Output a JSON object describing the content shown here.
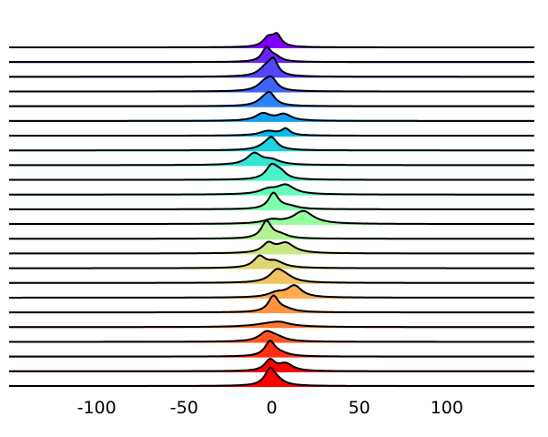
{
  "chart_data": {
    "type": "area",
    "title": "",
    "xlabel": "",
    "ylabel": "",
    "xlim": [
      -150,
      150
    ],
    "x_ticks": [
      -100,
      -50,
      0,
      50,
      100
    ],
    "x_tick_labels": [
      "-100",
      "-50",
      "0",
      "50",
      "100"
    ],
    "grid": false,
    "legend": "none",
    "series": [
      {
        "color": "#8000ff",
        "peaks": [
          {
            "center": -2,
            "height": 1.0,
            "width": 3.5
          },
          {
            "center": 3,
            "height": 1.25,
            "width": 3
          }
        ]
      },
      {
        "color": "#6a23fe",
        "peaks": [
          {
            "center": -3,
            "height": 1.5,
            "width": 3
          },
          {
            "center": 2,
            "height": 0.5,
            "width": 4
          }
        ]
      },
      {
        "color": "#5444fd",
        "peaks": [
          {
            "center": -3,
            "height": 1.0,
            "width": 5
          },
          {
            "center": 1,
            "height": 1.5,
            "width": 3
          }
        ]
      },
      {
        "color": "#3e63fa",
        "peaks": [
          {
            "center": -4,
            "height": 0.9,
            "width": 5
          },
          {
            "center": 0,
            "height": 1.1,
            "width": 3.5
          }
        ]
      },
      {
        "color": "#2884f6",
        "peaks": [
          {
            "center": -4,
            "height": 0.7,
            "width": 5
          },
          {
            "center": -1,
            "height": 1.05,
            "width": 3.5
          }
        ]
      },
      {
        "color": "#12a1f0",
        "peaks": [
          {
            "center": -5,
            "height": 0.8,
            "width": 5
          },
          {
            "center": 7,
            "height": 0.7,
            "width": 5
          }
        ]
      },
      {
        "color": "#03bce9",
        "peaks": [
          {
            "center": -2,
            "height": 0.5,
            "width": 6
          },
          {
            "center": 8,
            "height": 0.7,
            "width": 3
          }
        ]
      },
      {
        "color": "#1ad4e1",
        "peaks": [
          {
            "center": -3,
            "height": 0.5,
            "width": 6
          },
          {
            "center": 0,
            "height": 1.1,
            "width": 3.5
          }
        ]
      },
      {
        "color": "#33e6d5",
        "peaks": [
          {
            "center": -10,
            "height": 1.25,
            "width": 5
          },
          {
            "center": 0,
            "height": 0.5,
            "width": 6
          }
        ]
      },
      {
        "color": "#4cf2c9",
        "peaks": [
          {
            "center": 0,
            "height": 1.5,
            "width": 4
          },
          {
            "center": 5,
            "height": 0.7,
            "width": 4
          }
        ]
      },
      {
        "color": "#65fbbc",
        "peaks": [
          {
            "center": -2,
            "height": 0.5,
            "width": 6
          },
          {
            "center": 8,
            "height": 1.0,
            "width": 6
          }
        ]
      },
      {
        "color": "#7efeae",
        "peaks": [
          {
            "center": 1,
            "height": 1.75,
            "width": 3.5
          },
          {
            "center": 10,
            "height": 0.3,
            "width": 6
          }
        ]
      },
      {
        "color": "#97fea0",
        "peaks": [
          {
            "center": 18,
            "height": 1.4,
            "width": 7
          },
          {
            "center": 0,
            "height": 0.4,
            "width": 6
          }
        ]
      },
      {
        "color": "#b1f492",
        "peaks": [
          {
            "center": -3,
            "height": 1.9,
            "width": 3.5
          },
          {
            "center": 5,
            "height": 0.4,
            "width": 5
          }
        ]
      },
      {
        "color": "#c8e882",
        "peaks": [
          {
            "center": -2,
            "height": 1.0,
            "width": 4
          },
          {
            "center": 8,
            "height": 1.1,
            "width": 6
          }
        ]
      },
      {
        "color": "#ddd672",
        "peaks": [
          {
            "center": -7,
            "height": 1.2,
            "width": 4
          },
          {
            "center": 2,
            "height": 0.7,
            "width": 6
          }
        ]
      },
      {
        "color": "#f1c461",
        "peaks": [
          {
            "center": 3,
            "height": 1.25,
            "width": 5
          },
          {
            "center": 8,
            "height": 0.5,
            "width": 6
          }
        ]
      },
      {
        "color": "#fdac51",
        "peaks": [
          {
            "center": 13,
            "height": 1.25,
            "width": 5
          },
          {
            "center": 3,
            "height": 0.5,
            "width": 6
          }
        ]
      },
      {
        "color": "#ff9241",
        "peaks": [
          {
            "center": 1,
            "height": 1.75,
            "width": 3.5
          },
          {
            "center": 8,
            "height": 0.3,
            "width": 6
          }
        ]
      },
      {
        "color": "#ff7531",
        "peaks": [
          {
            "center": 0,
            "height": 0.4,
            "width": 12
          },
          {
            "center": 5,
            "height": 0.25,
            "width": 6
          }
        ]
      },
      {
        "color": "#ff5420",
        "peaks": [
          {
            "center": -3,
            "height": 1.0,
            "width": 5
          },
          {
            "center": 3,
            "height": 0.4,
            "width": 6
          }
        ]
      },
      {
        "color": "#ff2f10",
        "peaks": [
          {
            "center": -1,
            "height": 1.6,
            "width": 3.5
          },
          {
            "center": 5,
            "height": 0.3,
            "width": 6
          }
        ]
      },
      {
        "color": "#ff0000",
        "peaks": [
          {
            "center": -1,
            "height": 1.2,
            "width": 3.5
          },
          {
            "center": 8,
            "height": 0.8,
            "width": 5
          }
        ]
      },
      {
        "color": "#ff0000",
        "peaks": [
          {
            "center": -1,
            "height": 1.7,
            "width": 3.5
          },
          {
            "center": 3,
            "height": 0.5,
            "width": 5
          }
        ]
      }
    ]
  }
}
